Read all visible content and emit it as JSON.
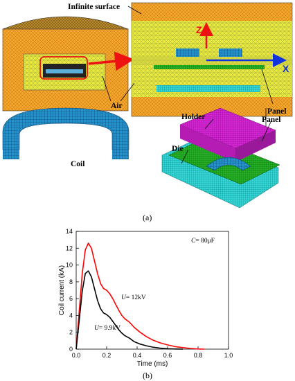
{
  "figure": {
    "labels": {
      "infinite_surface": "Infinite surface",
      "air": "Air",
      "panel": "Panel",
      "holder": "Holder",
      "coil": "Coil",
      "die": "Die",
      "axis_z": "Z",
      "axis_x": "X"
    },
    "caption_a": "(a)",
    "caption_b": "(b)"
  },
  "colors": {
    "orange_mesh": "#f5a623",
    "air_yellow": "#e6e63c",
    "coil_blue": "#1f8fc8",
    "cyan_die": "#2fd4d4",
    "green_panel": "#22b022",
    "magenta_holder": "#d21ed2",
    "red_arrow": "#ee1111",
    "blue_arrow": "#1133dd",
    "red_curve": "#ff0000",
    "black_curve": "#000000"
  },
  "chart_data": {
    "type": "line",
    "xlabel": "Time (ms)",
    "ylabel": "Coil current (kA)",
    "xlim": [
      0,
      1.0
    ],
    "ylim": [
      0,
      14
    ],
    "xticks": [
      "0.0",
      "0.2",
      "0.4",
      "0.6",
      "0.8",
      "1.0"
    ],
    "yticks": [
      "0",
      "2",
      "4",
      "6",
      "8",
      "10",
      "12",
      "14"
    ],
    "annotations": {
      "capacitance_italic": "C",
      "capacitance_rest": "= 80μF",
      "red_label_italic": "U",
      "red_label_rest": "= 12kV",
      "black_label_italic": "U",
      "black_label_rest": "= 9.9kV"
    },
    "series": [
      {
        "color": "#ff0000",
        "x": [
          0,
          0.02,
          0.04,
          0.06,
          0.08,
          0.1,
          0.12,
          0.14,
          0.16,
          0.18,
          0.2,
          0.22,
          0.24,
          0.26,
          0.28,
          0.3,
          0.32,
          0.35,
          0.38,
          0.42,
          0.46,
          0.5,
          0.55,
          0.6,
          0.65,
          0.7,
          0.75,
          0.8,
          0.84
        ],
        "y": [
          0,
          4.5,
          9.0,
          11.8,
          12.6,
          12.0,
          10.5,
          9.0,
          7.8,
          7.2,
          7.0,
          6.6,
          6.0,
          5.3,
          4.6,
          4.0,
          3.6,
          3.2,
          2.6,
          2.0,
          1.5,
          1.1,
          0.75,
          0.5,
          0.3,
          0.18,
          0.08,
          0.02,
          0.0
        ]
      },
      {
        "color": "#000000",
        "x": [
          0,
          0.02,
          0.04,
          0.06,
          0.08,
          0.1,
          0.12,
          0.14,
          0.16,
          0.18,
          0.2,
          0.22,
          0.24,
          0.26,
          0.28,
          0.3,
          0.32,
          0.35,
          0.38,
          0.42,
          0.46,
          0.5,
          0.55,
          0.6,
          0.65,
          0.7
        ],
        "y": [
          0,
          3.4,
          6.9,
          9.0,
          9.3,
          8.6,
          7.2,
          5.8,
          4.8,
          4.3,
          4.1,
          3.8,
          3.3,
          2.8,
          2.3,
          1.9,
          1.6,
          1.3,
          0.9,
          0.6,
          0.4,
          0.25,
          0.12,
          0.05,
          0.02,
          0.0
        ]
      }
    ]
  }
}
